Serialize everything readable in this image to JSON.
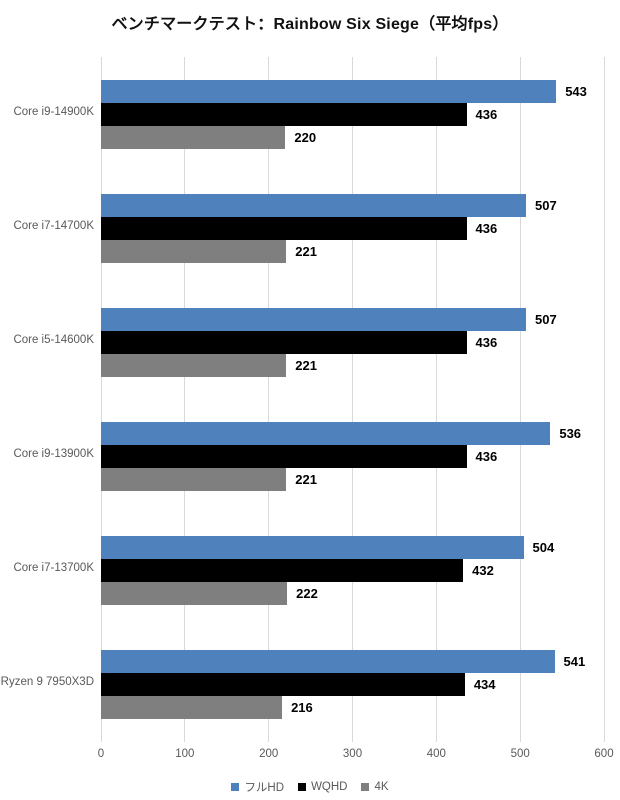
{
  "chart_data": {
    "type": "bar",
    "orientation": "horizontal",
    "title": "ベンチマークテスト：Rainbow Six Siege（平均fps）",
    "categories": [
      "Core i9-14900K",
      "Core i7-14700K",
      "Core i5-14600K",
      "Core i9-13900K",
      "Core i7-13700K",
      "Ryzen 9 7950X3D"
    ],
    "series": [
      {
        "name": "フルHD",
        "color": "#4F81BD",
        "values": [
          543,
          507,
          507,
          536,
          504,
          541
        ]
      },
      {
        "name": "WQHD",
        "color": "#000000",
        "values": [
          436,
          436,
          436,
          436,
          432,
          434
        ]
      },
      {
        "name": "4K",
        "color": "#7F7F7F",
        "values": [
          220,
          221,
          221,
          221,
          222,
          216
        ]
      }
    ],
    "xlim": [
      0,
      600
    ],
    "xticks": [
      0,
      100,
      200,
      300,
      400,
      500,
      600
    ],
    "grid": true,
    "legend_position": "bottom",
    "colors": {
      "gridline": "#d9d9d9",
      "axis_text": "#595959",
      "value_text": "#000000"
    }
  }
}
